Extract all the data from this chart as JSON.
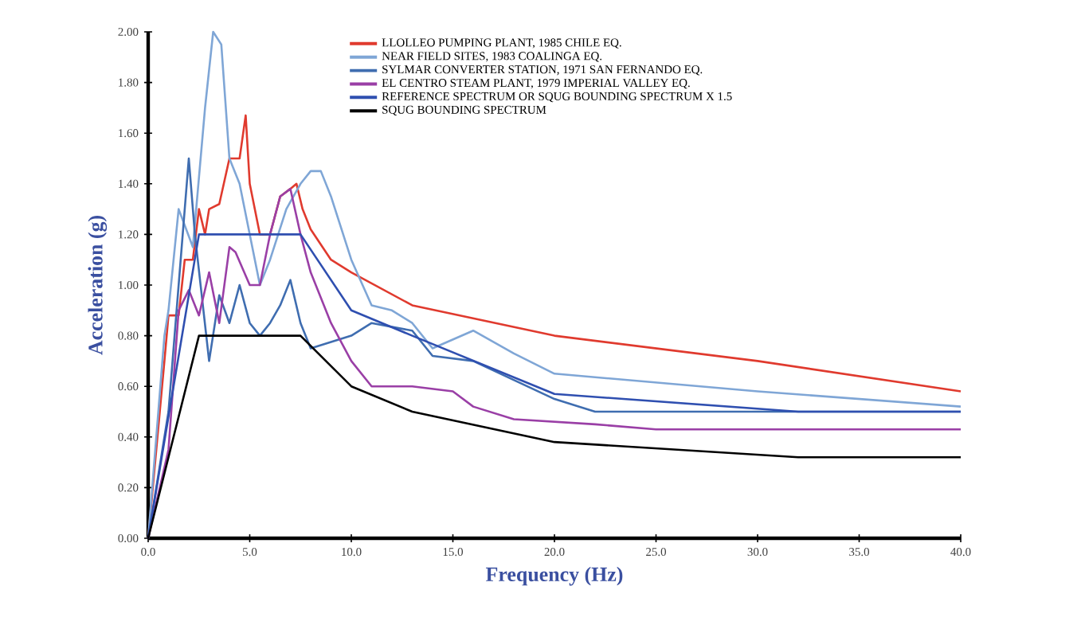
{
  "chart_data": {
    "type": "line",
    "xlabel": "Frequency (Hz)",
    "ylabel": "Acceleration (g)",
    "xlim": [
      0,
      40
    ],
    "ylim": [
      0,
      2
    ],
    "xticks": [
      {
        "value": 0,
        "label": "0.0"
      },
      {
        "value": 5,
        "label": "5.0"
      },
      {
        "value": 10,
        "label": "10.0"
      },
      {
        "value": 15,
        "label": "15.0"
      },
      {
        "value": 20,
        "label": "20.0"
      },
      {
        "value": 25,
        "label": "25.0"
      },
      {
        "value": 30,
        "label": "30.0"
      },
      {
        "value": 35,
        "label": "35.0"
      },
      {
        "value": 40,
        "label": "40.0"
      }
    ],
    "yticks": [
      {
        "value": 0,
        "label": "0.00"
      },
      {
        "value": 0.2,
        "label": "0.20"
      },
      {
        "value": 0.4,
        "label": "0.40"
      },
      {
        "value": 0.6,
        "label": "0.60"
      },
      {
        "value": 0.8,
        "label": "0.80"
      },
      {
        "value": 1.0,
        "label": "1.00"
      },
      {
        "value": 1.2,
        "label": "1.20"
      },
      {
        "value": 1.4,
        "label": "1.40"
      },
      {
        "value": 1.6,
        "label": "1.60"
      },
      {
        "value": 1.8,
        "label": "1.80"
      },
      {
        "value": 2.0,
        "label": "2.00"
      }
    ],
    "legend": "top",
    "marker": "none",
    "line_style": "solid",
    "series": [
      {
        "name": "LLOLLEO PUMPING PLANT, 1985 CHILE EQ.",
        "color": "#e03a2e",
        "x": [
          0,
          0.8,
          1,
          1.5,
          1.8,
          2.2,
          2.5,
          2.8,
          3,
          3.5,
          4,
          4.5,
          4.8,
          5,
          5.5,
          6,
          6.5,
          7,
          7.3,
          7.6,
          8,
          9,
          10,
          13,
          20,
          30,
          40
        ],
        "values": [
          0,
          0.7,
          0.88,
          0.88,
          1.1,
          1.1,
          1.3,
          1.2,
          1.3,
          1.32,
          1.5,
          1.5,
          1.67,
          1.4,
          1.2,
          1.2,
          1.35,
          1.38,
          1.4,
          1.3,
          1.22,
          1.1,
          1.05,
          0.92,
          0.8,
          0.7,
          0.58
        ]
      },
      {
        "name": "NEAR FIELD SITES, 1983 COALINGA EQ.",
        "color": "#7fa6d6",
        "x": [
          0,
          0.8,
          1,
          1.5,
          2.2,
          2.8,
          3.2,
          3.6,
          4,
          4.5,
          5,
          5.5,
          6,
          6.8,
          7.5,
          8,
          8.5,
          9,
          10,
          11,
          12,
          13,
          14,
          16,
          18,
          20,
          30,
          40
        ],
        "values": [
          0,
          0.8,
          0.9,
          1.3,
          1.15,
          1.7,
          2.0,
          1.95,
          1.5,
          1.4,
          1.2,
          1.0,
          1.1,
          1.3,
          1.4,
          1.45,
          1.45,
          1.35,
          1.1,
          0.92,
          0.9,
          0.85,
          0.75,
          0.82,
          0.73,
          0.65,
          0.58,
          0.52
        ]
      },
      {
        "name": "SYLMAR CONVERTER STATION, 1971 SAN FERNANDO EQ.",
        "color": "#3f6db0",
        "x": [
          0,
          1,
          1.5,
          2,
          2.3,
          3,
          3.5,
          4,
          4.5,
          5,
          5.5,
          6,
          6.5,
          7,
          7.5,
          8,
          10,
          11,
          13,
          14,
          16,
          20,
          22,
          40
        ],
        "values": [
          0,
          0.5,
          1.0,
          1.5,
          1.2,
          0.7,
          0.96,
          0.85,
          1.0,
          0.85,
          0.8,
          0.85,
          0.92,
          1.02,
          0.85,
          0.75,
          0.8,
          0.85,
          0.82,
          0.72,
          0.7,
          0.55,
          0.5,
          0.5
        ]
      },
      {
        "name": "EL CENTRO STEAM PLANT, 1979 IMPERIAL VALLEY EQ.",
        "color": "#9a3fa6",
        "x": [
          0,
          1,
          1.5,
          2,
          2.5,
          3,
          3.5,
          4,
          4.3,
          5,
          5.5,
          6,
          6.5,
          7,
          7.5,
          8,
          9,
          10,
          11,
          13,
          15,
          16,
          18,
          22,
          25,
          40
        ],
        "values": [
          0,
          0.35,
          0.9,
          0.98,
          0.88,
          1.05,
          0.85,
          1.15,
          1.13,
          1.0,
          1.0,
          1.2,
          1.35,
          1.38,
          1.2,
          1.05,
          0.85,
          0.7,
          0.6,
          0.6,
          0.58,
          0.52,
          0.47,
          0.45,
          0.43,
          0.43
        ]
      },
      {
        "name": "REFERENCE SPECTRUM OR SQUG BOUNDING SPECTRUM X 1.5",
        "color": "#2f4fb0",
        "x": [
          0,
          2.5,
          7.5,
          10,
          13,
          20,
          32,
          40
        ],
        "values": [
          0,
          1.2,
          1.2,
          0.9,
          0.8,
          0.57,
          0.5,
          0.5
        ]
      },
      {
        "name": "SQUG BOUNDING SPECTRUM",
        "color": "#000000",
        "x": [
          0,
          2.5,
          7.5,
          10,
          13,
          20,
          32,
          40
        ],
        "values": [
          0,
          0.8,
          0.8,
          0.6,
          0.5,
          0.38,
          0.32,
          0.32
        ]
      }
    ]
  }
}
